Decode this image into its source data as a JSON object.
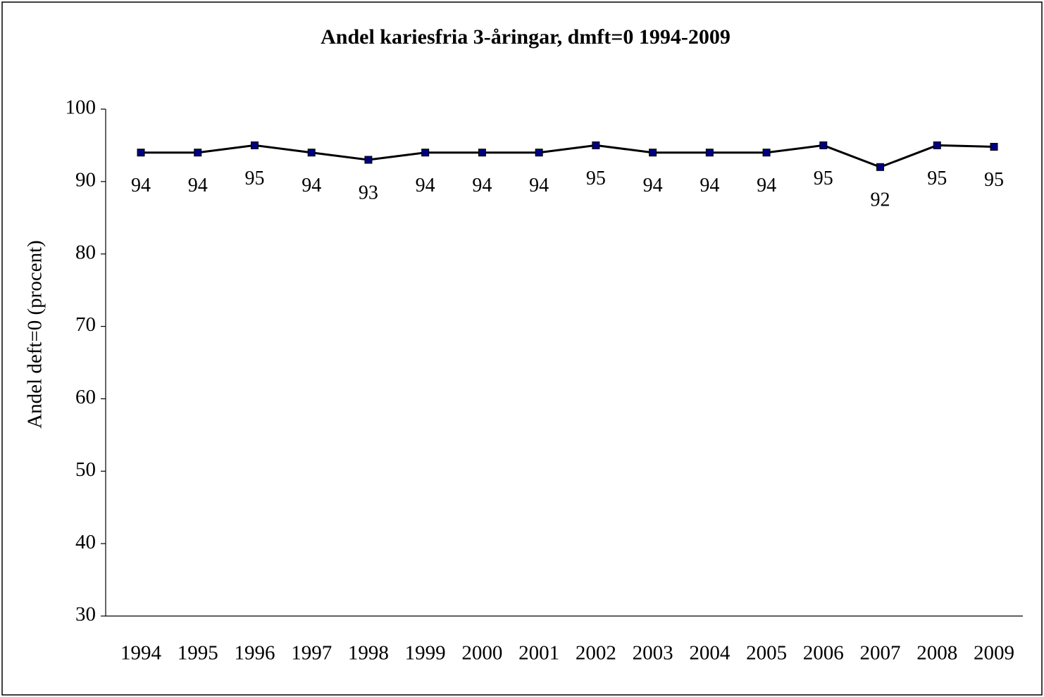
{
  "chart_data": {
    "type": "line",
    "title": "Andel kariesfria 3-åringar, dmft=0 1994-2009",
    "y_label": "Andel deft=0 (procent)",
    "categories": [
      "1994",
      "1995",
      "1996",
      "1997",
      "1998",
      "1999",
      "2000",
      "2001",
      "2002",
      "2003",
      "2004",
      "2005",
      "2006",
      "2007",
      "2008",
      "2009"
    ],
    "series": [
      {
        "color": "#000080",
        "values": [
          94,
          94,
          95,
          94,
          93,
          94,
          94,
          94,
          95,
          94,
          94,
          94,
          95,
          92,
          95,
          94.8
        ],
        "value_labels": [
          "94",
          "94",
          "95",
          "94",
          "93",
          "94",
          "94",
          "94",
          "95",
          "94",
          "94",
          "94",
          "95",
          "92",
          "95",
          "95"
        ]
      }
    ],
    "ylim": [
      30,
      100
    ],
    "yticks": [
      30,
      40,
      50,
      60,
      70,
      80,
      90,
      100
    ]
  }
}
